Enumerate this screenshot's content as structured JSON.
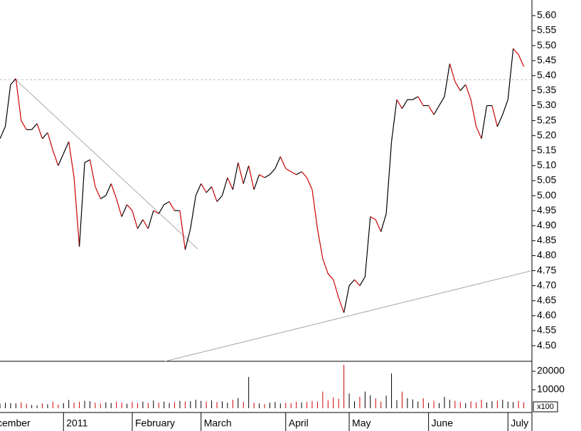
{
  "chart_data": {
    "type": "line",
    "up_color": "#000000",
    "down_color": "#cc0000",
    "categories": [
      "cember",
      null,
      null,
      null,
      null,
      null,
      null,
      null,
      null,
      null,
      null,
      null,
      "2011",
      null,
      null,
      null,
      null,
      null,
      null,
      null,
      null,
      null,
      null,
      null,
      null,
      "February",
      null,
      null,
      null,
      null,
      null,
      null,
      null,
      null,
      null,
      null,
      null,
      null,
      "March",
      null,
      null,
      null,
      null,
      null,
      null,
      null,
      null,
      null,
      null,
      null,
      null,
      null,
      null,
      null,
      "April",
      null,
      null,
      null,
      null,
      null,
      null,
      null,
      null,
      null,
      null,
      null,
      "May",
      null,
      null,
      null,
      null,
      null,
      null,
      null,
      null,
      null,
      null,
      null,
      null,
      null,
      null,
      "June",
      null,
      null,
      null,
      null,
      null,
      null,
      null,
      null,
      null,
      null,
      null,
      null,
      null,
      null,
      "July",
      null,
      null,
      null
    ],
    "series": [
      {
        "values": [
          5.19,
          5.23,
          5.37,
          5.39,
          5.25,
          5.22,
          5.22,
          5.24,
          5.19,
          5.21,
          5.15,
          5.1,
          5.14,
          5.18,
          5.06,
          4.83,
          5.11,
          5.12,
          5.03,
          4.99,
          5.0,
          5.04,
          4.99,
          4.93,
          4.97,
          4.95,
          4.89,
          4.92,
          4.89,
          4.95,
          4.94,
          4.97,
          4.98,
          4.95,
          4.95,
          4.82,
          4.89,
          5.0,
          5.04,
          5.01,
          5.03,
          4.98,
          5.0,
          5.06,
          5.02,
          5.11,
          5.04,
          5.1,
          5.02,
          5.07,
          5.06,
          5.07,
          5.09,
          5.13,
          5.09,
          5.08,
          5.07,
          5.08,
          5.06,
          5.02,
          4.89,
          4.79,
          4.74,
          4.72,
          4.66,
          4.61,
          4.7,
          4.72,
          4.7,
          4.73,
          4.93,
          4.92,
          4.88,
          4.94,
          5.18,
          5.32,
          5.29,
          5.32,
          5.32,
          5.33,
          5.3,
          5.3,
          5.27,
          5.3,
          5.33,
          5.44,
          5.38,
          5.35,
          5.37,
          5.32,
          5.23,
          5.19,
          5.3,
          5.3,
          5.23,
          5.27,
          5.32,
          5.49,
          5.47,
          5.43
        ]
      }
    ],
    "ylim": [
      4.448,
      5.652
    ],
    "yticks": [
      {
        "value": 4.5,
        "label": "4.50"
      },
      4.55,
      {
        "value": 4.6,
        "label": "4.60"
      },
      4.65,
      {
        "value": 4.7,
        "label": "4.70"
      },
      4.75,
      {
        "value": 4.8,
        "label": "4.80"
      },
      4.85,
      {
        "value": 4.9,
        "label": "4.90"
      },
      4.95,
      {
        "value": 5,
        "label": "5.00"
      },
      5.05,
      {
        "value": 5.1,
        "label": "5.10"
      },
      5.15,
      {
        "value": 5.2,
        "label": "5.20"
      },
      5.25,
      {
        "value": 5.3,
        "label": "5.30"
      },
      5.35,
      {
        "value": 5.4,
        "label": "5.40"
      },
      5.45,
      {
        "value": 5.5,
        "label": "5.50"
      },
      5.55,
      {
        "value": 5.6,
        "label": "5.60"
      }
    ],
    "volume": {
      "values": [
        2500,
        3000,
        2800,
        2600,
        3200,
        2400,
        1800,
        1500,
        2600,
        2200,
        3500,
        2000,
        2800,
        4500,
        3000,
        3500,
        4000,
        3800,
        3000,
        2600,
        3200,
        2800,
        3600,
        3000,
        2400,
        3400,
        2800,
        3600,
        3000,
        4200,
        3000,
        3600,
        2800,
        3400,
        4000,
        3600,
        3800,
        4600,
        4000,
        3600,
        4200,
        3400,
        3800,
        3000,
        4600,
        5600,
        3400,
        16900,
        3000,
        2600,
        2200,
        3000,
        3400,
        2600,
        3000,
        2800,
        3400,
        3200,
        3400,
        4000,
        3600,
        9000,
        4200,
        5800,
        5200,
        23500,
        8000,
        3800,
        6200,
        9000,
        7000,
        5400,
        3600,
        6800,
        18800,
        4400,
        9000,
        5400,
        4800,
        3600,
        5400,
        3000,
        4000,
        2800,
        6200,
        4600,
        4000,
        3400,
        2800,
        3800,
        3200,
        4600,
        3200,
        3800,
        4000,
        4600,
        3600,
        3400,
        4000,
        3200
      ],
      "ylim": [
        0,
        25400
      ],
      "yticks": [
        10000,
        20000
      ],
      "unit_label": "x100"
    }
  }
}
